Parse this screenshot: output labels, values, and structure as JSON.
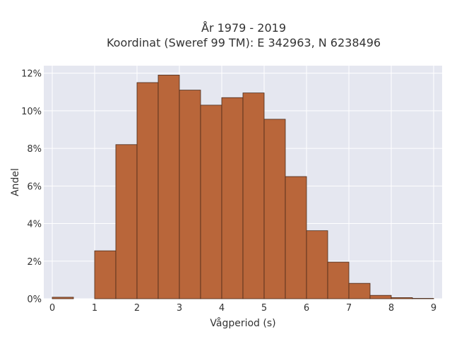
{
  "chart_data": {
    "type": "bar",
    "title_lines": [
      "År 1979 - 2019",
      "Koordinat (Sweref 99 TM): E 342963, N 6238496"
    ],
    "xlabel": "Vågperiod (s)",
    "ylabel": "Andel",
    "bin_width": 0.5,
    "bins_start": [
      0,
      0.5,
      1,
      1.5,
      2,
      2.5,
      3,
      3.5,
      4,
      4.5,
      5,
      5.5,
      6,
      6.5,
      7,
      7.5,
      8,
      8.5
    ],
    "values": [
      0.08,
      0,
      2.55,
      8.2,
      11.5,
      11.9,
      11.1,
      10.3,
      10.7,
      10.95,
      9.55,
      6.5,
      3.62,
      1.95,
      0.82,
      0.18,
      0.06,
      0.02
    ],
    "xlim": [
      -0.2,
      9.2
    ],
    "ylim": [
      0,
      12.4
    ],
    "x_ticks": [
      0,
      1,
      2,
      3,
      4,
      5,
      6,
      7,
      8,
      9
    ],
    "x_tick_labels": [
      "0",
      "1",
      "2",
      "3",
      "4",
      "5",
      "6",
      "7",
      "8",
      "9"
    ],
    "y_ticks": [
      0,
      2,
      4,
      6,
      8,
      10,
      12
    ],
    "y_tick_labels": [
      "0%",
      "2%",
      "4%",
      "6%",
      "8%",
      "10%",
      "12%"
    ],
    "grid": true,
    "colors": {
      "plot_bg": "#e5e7f0",
      "grid": "#ffffff",
      "bar_fill": "#b9663a",
      "bar_edge": "#4a2a1a"
    }
  }
}
